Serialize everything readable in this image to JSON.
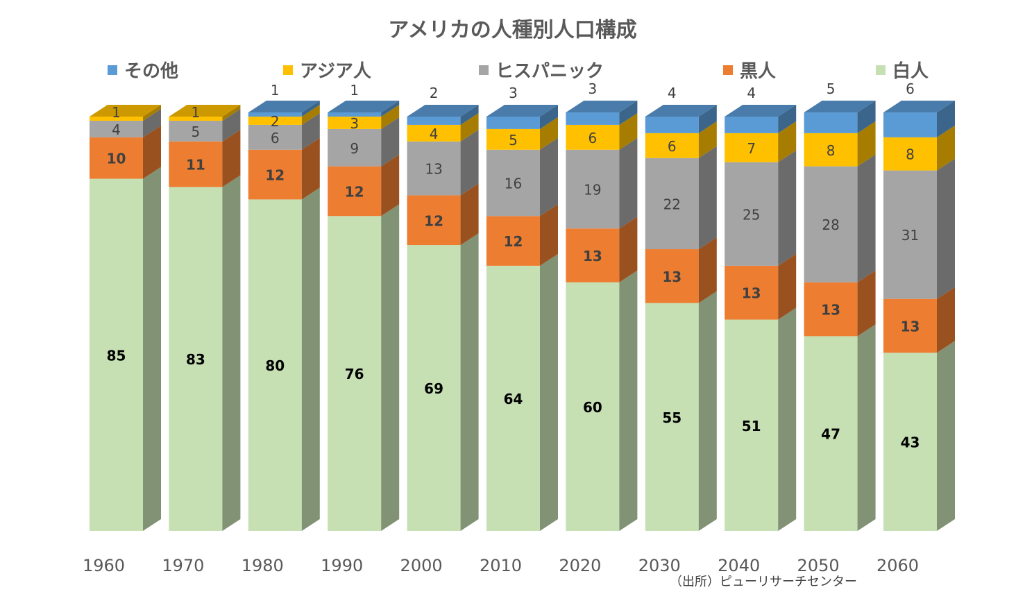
{
  "chart_data": {
    "type": "bar",
    "stacked": true,
    "three_d": true,
    "title": "アメリカの人種別人口構成",
    "categories": [
      "1960",
      "1970",
      "1980",
      "1990",
      "2000",
      "2010",
      "2020",
      "2030",
      "2040",
      "2050",
      "2060"
    ],
    "series": [
      {
        "name": "白人",
        "color": "#c6e0b4",
        "values": [
          85,
          83,
          80,
          76,
          69,
          64,
          60,
          55,
          51,
          47,
          43
        ]
      },
      {
        "name": "黒人",
        "color": "#ed7d31",
        "values": [
          10,
          11,
          12,
          12,
          12,
          12,
          13,
          13,
          13,
          13,
          13
        ]
      },
      {
        "name": "ヒスパニック",
        "color": "#a5a5a5",
        "values": [
          4,
          5,
          6,
          9,
          13,
          16,
          19,
          22,
          25,
          28,
          31
        ]
      },
      {
        "name": "アジア人",
        "color": "#ffc000",
        "values": [
          1,
          1,
          2,
          3,
          4,
          5,
          6,
          6,
          7,
          8,
          8
        ]
      },
      {
        "name": "その他",
        "color": "#5b9bd5",
        "values": [
          0,
          0,
          1,
          1,
          2,
          3,
          3,
          4,
          4,
          5,
          6
        ]
      }
    ],
    "data_labels": [
      [
        "85",
        "10",
        "4",
        "1",
        "—"
      ],
      [
        "83",
        "11",
        "5",
        "1",
        "—"
      ],
      [
        "80",
        "12",
        "6",
        "2",
        "1"
      ],
      [
        "76",
        "12",
        "9",
        "3",
        "1"
      ],
      [
        "69",
        "12",
        "13",
        "4",
        "2"
      ],
      [
        "64",
        "12",
        "16",
        "5",
        "3"
      ],
      [
        "60",
        "13",
        "19",
        "6",
        "3"
      ],
      [
        "55",
        "13",
        "22",
        "6",
        "4"
      ],
      [
        "51",
        "13",
        "25",
        "7",
        "4"
      ],
      [
        "47",
        "13",
        "28",
        "8",
        "5"
      ],
      [
        "43",
        "13",
        "31",
        "8",
        "6"
      ]
    ],
    "legend_order": [
      "その他",
      "アジア人",
      "ヒスパニック",
      "黒人",
      "白人"
    ],
    "legend_position": "top",
    "grid": false
  },
  "source_note": "（出所）ピューリサーチセンター"
}
